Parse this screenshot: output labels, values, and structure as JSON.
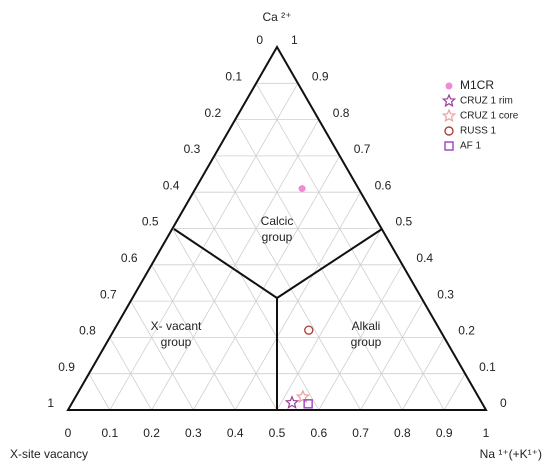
{
  "chart_data": {
    "type": "ternary",
    "top_label": "Ca ²⁺",
    "left_label": "X-site vacancy",
    "right_label": "Na ¹⁺(+K¹⁺)",
    "bottom_ticks": [
      0,
      0.1,
      0.2,
      0.3,
      0.4,
      0.5,
      0.6,
      0.7,
      0.8,
      0.9,
      1
    ],
    "left_ticks": [
      0,
      0.1,
      0.2,
      0.3,
      0.4,
      0.5,
      0.6,
      0.7,
      0.8,
      0.9,
      1
    ],
    "right_ticks": [
      0,
      0.1,
      0.2,
      0.3,
      0.4,
      0.5,
      0.6,
      0.7,
      0.8,
      0.9,
      1
    ],
    "grid": true,
    "regions": [
      [
        "Calcic",
        "group"
      ],
      [
        "X- vacant",
        "group"
      ],
      [
        "Alkali",
        "group"
      ]
    ],
    "series": [
      {
        "name": "M1CR",
        "color": "#f08ad8",
        "marker": "filled-circle",
        "ca": [
          0.61
        ],
        "na": [
          0.255
        ]
      },
      {
        "name": "CRUZ 1 rim",
        "color": "#9b3b9b",
        "marker": "star",
        "ca": [
          0.02
        ],
        "na": [
          0.526
        ]
      },
      {
        "name": "CRUZ 1 core",
        "color": "#e8a0a0",
        "marker": "star",
        "ca": [
          0.036
        ],
        "na": [
          0.544
        ]
      },
      {
        "name": "RUSS 1",
        "color": "#b04040",
        "marker": "circle",
        "ca": [
          0.22
        ],
        "na": [
          0.466
        ]
      },
      {
        "name": "AF 1",
        "color": "#a040c0",
        "marker": "square",
        "ca": [
          0.017
        ],
        "na": [
          0.566
        ]
      }
    ]
  }
}
